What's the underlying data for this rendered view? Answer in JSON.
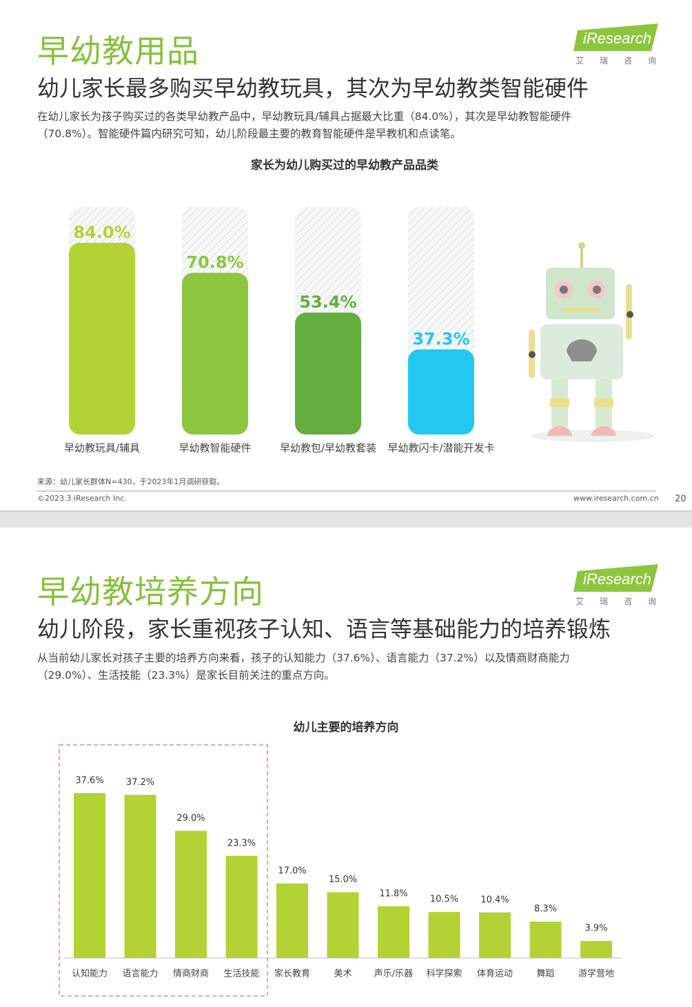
{
  "slides": [
    {
      "title": "早幼教用品",
      "subtitle": "幼儿家长最多购买早幼教玩具，其次为早幼教类智能硬件",
      "body": "在幼儿家长为孩子购买过的各类早幼教产品中，早幼教玩具/辅具占据最大比重（84.0%），其次是早幼教智能硬件（70.8%）。智能硬件篇内研究可知，幼儿阶段最主要的教育智能硬件是早教机和点读笔。",
      "logo": "iResearch",
      "logo_cn": "艾瑞咨询",
      "source": "来源：幼儿家长群体N=430，于2023年1月调研获取。",
      "copyright": "©2023.3 iResearch Inc.",
      "website": "www.iresearch.com.cn",
      "page_number": "20"
    },
    {
      "title": "早幼教培养方向",
      "subtitle": "幼儿阶段，家长重视孩子认知、语言等基础能力的培养锻炼",
      "body": "从当前幼儿家长对孩子主要的培养方向来看，孩子的认知能力（37.6%）、语言能力（37.2%）以及情商财商能力（29.0%）、生活技能（23.3%）是家长目前关注的重点方向。",
      "logo": "iResearch",
      "logo_cn": "艾瑞咨询"
    }
  ],
  "chart_data": [
    {
      "type": "bar",
      "title": "家长为幼儿购买过的早幼教产品品类",
      "categories": [
        "早幼教玩具/辅具",
        "早幼教智能硬件",
        "早幼教包/早幼教套装",
        "早幼教闪卡/潜能开发卡"
      ],
      "values": [
        84.0,
        70.8,
        53.4,
        37.3
      ],
      "value_labels": [
        "84.0%",
        "70.8%",
        "53.4%",
        "37.3%"
      ],
      "colors": [
        "#b3d235",
        "#8cc63f",
        "#63ae3e",
        "#22c8f0"
      ]
    },
    {
      "type": "bar",
      "title": "幼儿主要的培养方向",
      "categories": [
        "认知能力",
        "语言能力",
        "情商财商",
        "生活技能",
        "家长教育",
        "美术",
        "声乐/乐器",
        "科学探索",
        "体育运动",
        "舞蹈",
        "游学营地"
      ],
      "values": [
        37.6,
        37.2,
        29.0,
        23.3,
        17.0,
        15.0,
        11.8,
        10.5,
        10.4,
        8.3,
        3.9
      ],
      "value_labels": [
        "37.6%",
        "37.2%",
        "29.0%",
        "23.3%",
        "17.0%",
        "15.0%",
        "11.8%",
        "10.5%",
        "10.4%",
        "8.3%",
        "3.9%"
      ],
      "color": "#b3d235"
    }
  ]
}
